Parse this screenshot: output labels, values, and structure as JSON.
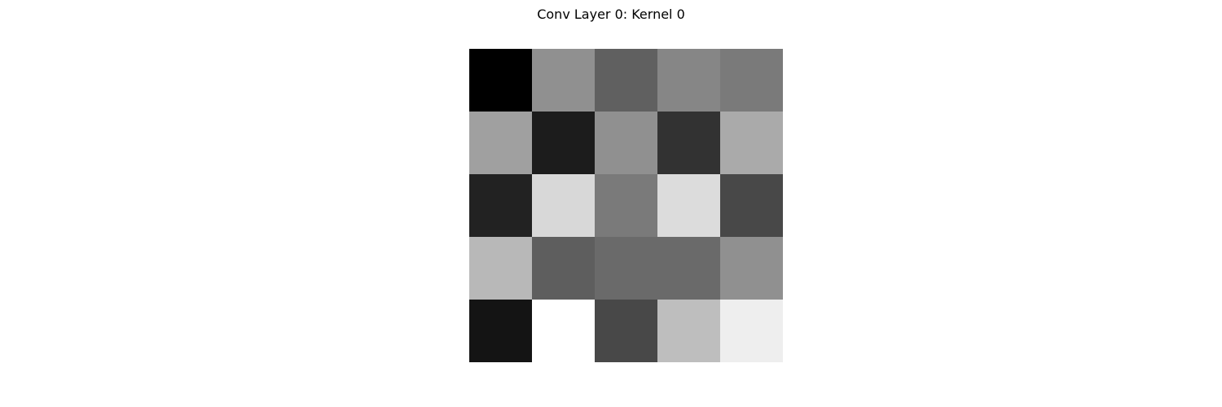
{
  "chart_data": {
    "type": "heatmap",
    "title": "Conv Layer 0: Kernel 0",
    "colormap": "gray",
    "axis_visible": false,
    "value_range": [
      0,
      255
    ],
    "rows": 5,
    "cols": 5,
    "values": [
      [
        0,
        144,
        96,
        134,
        122
      ],
      [
        160,
        28,
        144,
        50,
        170
      ],
      [
        34,
        216,
        122,
        220,
        72
      ],
      [
        184,
        94,
        106,
        106,
        144
      ],
      [
        20,
        255,
        72,
        190,
        238
      ]
    ]
  }
}
